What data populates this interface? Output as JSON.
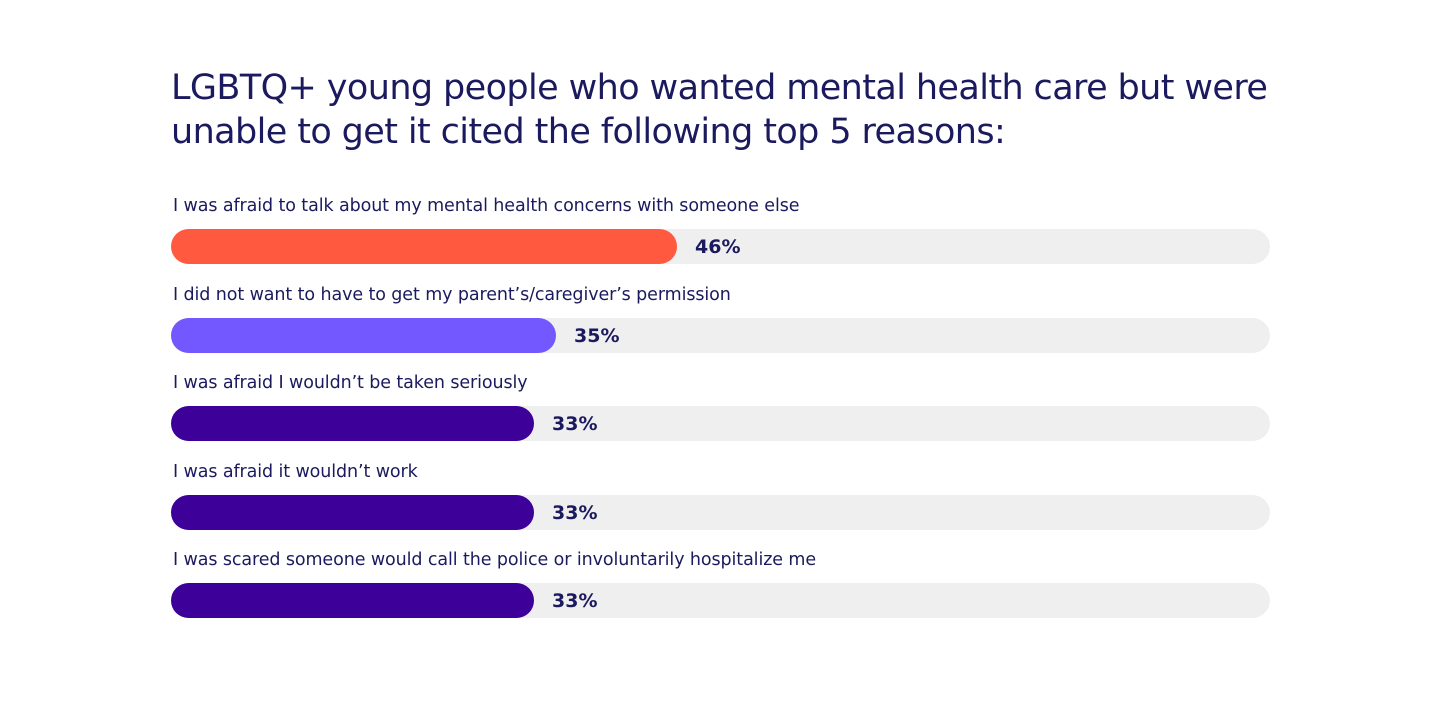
{
  "chart_data": {
    "type": "bar",
    "orientation": "horizontal",
    "title": "LGBTQ+ young people who wanted mental health care but were unable to get it cited the following top 5 reasons:",
    "xlim": [
      0,
      100
    ],
    "grid": false,
    "categories": [
      "I was afraid to talk about my mental health concerns with someone else",
      "I did not want to have to get my parent’s/caregiver’s permission",
      "I was afraid I wouldn’t be taken seriously",
      "I was afraid it wouldn’t work",
      "I was scared someone would call the police or involuntarily hospitalize me"
    ],
    "values": [
      46,
      35,
      33,
      33,
      33
    ],
    "value_labels": [
      "46%",
      "35%",
      "33%",
      "33%",
      "33%"
    ],
    "colors": [
      "#ff5a40",
      "#7357ff",
      "#3d0099",
      "#3d0099",
      "#3d0099"
    ],
    "track_color": "#efefef",
    "text_color": "#1b1a5e"
  }
}
